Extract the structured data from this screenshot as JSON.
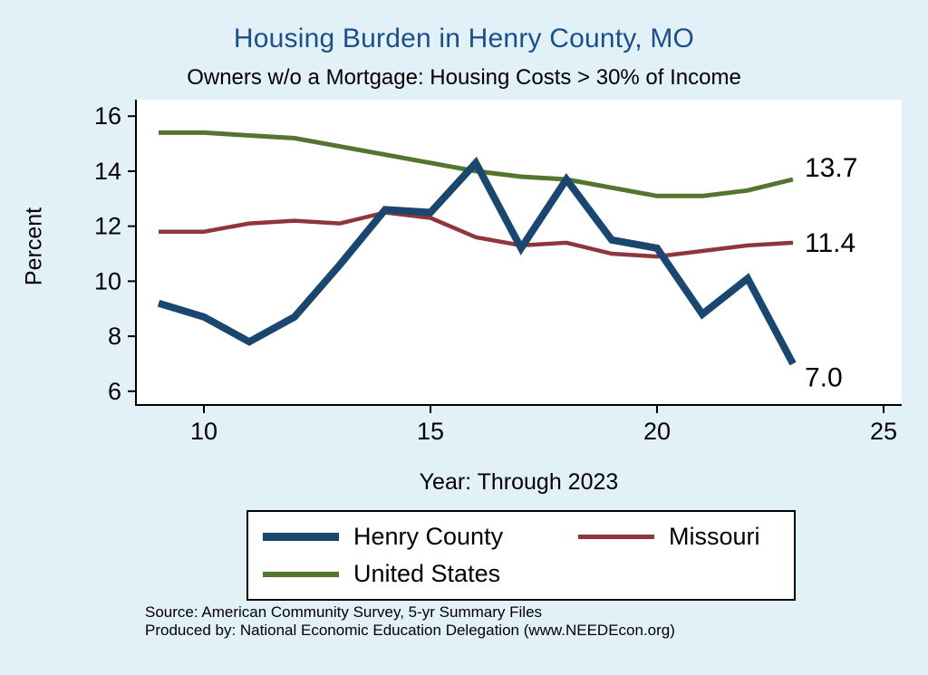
{
  "page": {
    "title": "Housing Burden in Henry County, MO",
    "subtitle": "Owners w/o a Mortgage: Housing Costs > 30% of Income",
    "y_axis_title": "Percent",
    "x_axis_title": "Year: Through 2023",
    "source": "Source: American Community Survey, 5-yr Summary Files",
    "credit": "Produced by: National Economic Education Delegation (www.NEEDEcon.org)"
  },
  "colors": {
    "background": "#e2f1f8",
    "plot_background": "#ffffff",
    "title_text": "#1c4e8a",
    "axis": "#000000",
    "end_label_text": "#000000"
  },
  "chart_data": {
    "type": "line",
    "x": [
      9,
      10,
      11,
      12,
      13,
      14,
      15,
      16,
      17,
      18,
      19,
      20,
      21,
      22,
      23
    ],
    "series": [
      {
        "name": "Henry County",
        "color": "#1a476f",
        "line_width": 8,
        "values": [
          9.2,
          8.7,
          7.8,
          8.7,
          10.6,
          12.6,
          12.5,
          14.3,
          11.2,
          13.7,
          11.5,
          11.2,
          8.8,
          10.1,
          7.0
        ],
        "end_label": "7.0",
        "end_label_dy": 25
      },
      {
        "name": "Missouri",
        "color": "#90353b",
        "line_width": 4.5,
        "values": [
          11.8,
          11.8,
          12.1,
          12.2,
          12.1,
          12.5,
          12.3,
          11.6,
          11.3,
          11.4,
          11.0,
          10.9,
          11.1,
          11.3,
          11.4
        ],
        "end_label": "11.4",
        "end_label_dy": 10
      },
      {
        "name": "United States",
        "color": "#55752f",
        "line_width": 5,
        "values": [
          15.4,
          15.4,
          15.3,
          15.2,
          14.9,
          14.6,
          14.3,
          14.0,
          13.8,
          13.7,
          13.4,
          13.1,
          13.1,
          13.3,
          13.7
        ],
        "end_label": "13.7",
        "end_label_dy": -3
      }
    ],
    "xlim": [
      8.5,
      25.4
    ],
    "ylim": [
      5.5,
      16.6
    ],
    "xticks": [
      10,
      15,
      20,
      25
    ],
    "yticks": [
      6,
      8,
      10,
      12,
      14,
      16
    ],
    "grid": false,
    "legend_position": "bottom",
    "title": "Housing Burden in Henry County, MO",
    "subtitle": "Owners w/o a Mortgage: Housing Costs > 30% of Income",
    "xlabel": "Year: Through 2023",
    "ylabel": "Percent"
  }
}
